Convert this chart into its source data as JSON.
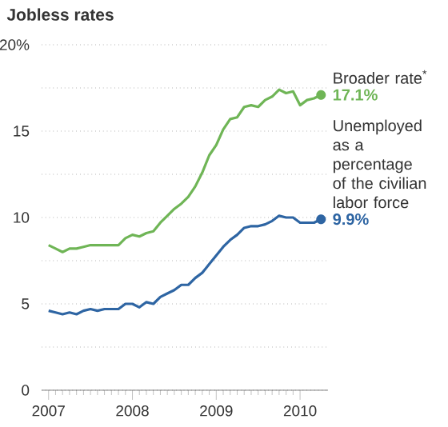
{
  "chart_data": {
    "type": "line",
    "title": "Jobless rates",
    "x": [
      "2007-01",
      "2007-02",
      "2007-03",
      "2007-04",
      "2007-05",
      "2007-06",
      "2007-07",
      "2007-08",
      "2007-09",
      "2007-10",
      "2007-11",
      "2007-12",
      "2008-01",
      "2008-02",
      "2008-03",
      "2008-04",
      "2008-05",
      "2008-06",
      "2008-07",
      "2008-08",
      "2008-09",
      "2008-10",
      "2008-11",
      "2008-12",
      "2009-01",
      "2009-02",
      "2009-03",
      "2009-04",
      "2009-05",
      "2009-06",
      "2009-07",
      "2009-08",
      "2009-09",
      "2009-10",
      "2009-11",
      "2009-12",
      "2010-01",
      "2010-02",
      "2010-03",
      "2010-04"
    ],
    "series": [
      {
        "name": "Broader rate$^{*}$",
        "color": "#6fb556",
        "values": [
          8.4,
          8.2,
          8.0,
          8.2,
          8.2,
          8.3,
          8.4,
          8.4,
          8.4,
          8.4,
          8.4,
          8.8,
          9.0,
          8.9,
          9.1,
          9.2,
          9.7,
          10.1,
          10.5,
          10.8,
          11.2,
          11.8,
          12.6,
          13.6,
          14.2,
          15.1,
          15.7,
          15.8,
          16.4,
          16.5,
          16.4,
          16.8,
          17.0,
          17.4,
          17.2,
          17.3,
          16.5,
          16.8,
          16.9,
          17.1
        ],
        "value_labels": [
          null,
          null,
          null,
          null,
          null,
          null,
          null,
          null,
          null,
          null,
          null,
          null,
          null,
          null,
          null,
          null,
          null,
          null,
          null,
          null,
          null,
          null,
          null,
          null,
          null,
          null,
          null,
          null,
          null,
          null,
          null,
          null,
          null,
          null,
          null,
          null,
          null,
          null,
          null,
          "17.1%"
        ]
      },
      {
        "name": "Unemployed as a percentage of the civilian labor force",
        "color": "#2e65a3",
        "values": [
          4.6,
          4.5,
          4.4,
          4.5,
          4.4,
          4.6,
          4.7,
          4.6,
          4.7,
          4.7,
          4.7,
          5.0,
          5.0,
          4.8,
          5.1,
          5.0,
          5.4,
          5.6,
          5.8,
          6.1,
          6.1,
          6.5,
          6.8,
          7.3,
          7.8,
          8.3,
          8.7,
          9.0,
          9.4,
          9.5,
          9.5,
          9.6,
          9.8,
          10.1,
          10.0,
          10.0,
          9.7,
          9.7,
          9.7,
          9.9
        ],
        "value_labels": [
          null,
          null,
          null,
          null,
          null,
          null,
          null,
          null,
          null,
          null,
          null,
          null,
          null,
          null,
          null,
          null,
          null,
          null,
          null,
          null,
          null,
          null,
          null,
          null,
          null,
          null,
          null,
          null,
          null,
          null,
          null,
          null,
          null,
          null,
          null,
          null,
          null,
          null,
          null,
          "9.9%"
        ]
      }
    ],
    "xlim": [
      "2006-12",
      "2010-05"
    ],
    "xticks": [
      "2007",
      "2008",
      "2009",
      "2010"
    ],
    "ylim": [
      0,
      20
    ],
    "yticks": [
      0,
      {
        "value": 2.5,
        "label": null
      },
      5,
      {
        "value": 7.5,
        "label": null
      },
      10,
      {
        "value": 12.5,
        "label": null
      },
      15,
      {
        "value": 17.5,
        "label": null
      },
      {
        "value": 20,
        "label": "20%"
      }
    ],
    "grid": "y",
    "legend": false,
    "line_style": "solid"
  }
}
